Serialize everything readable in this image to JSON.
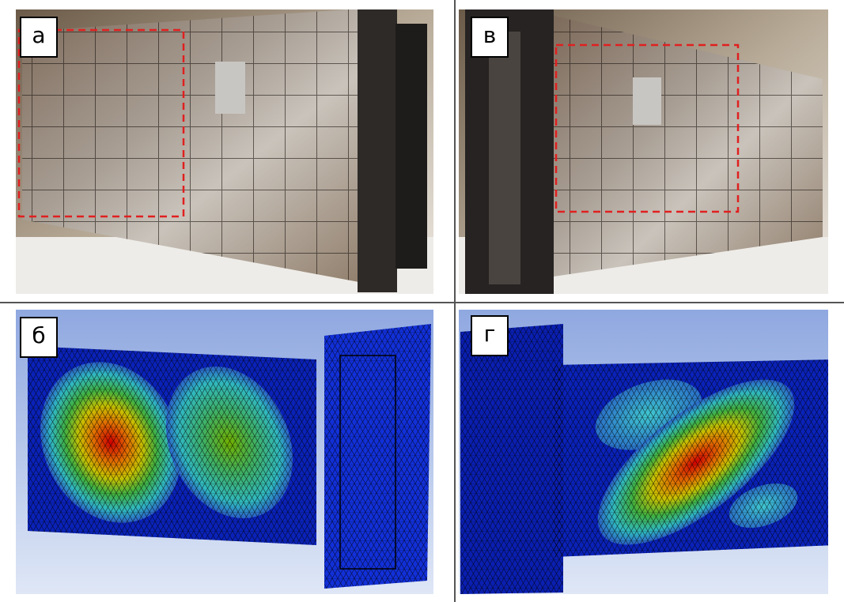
{
  "panels": [
    {
      "label": "а"
    },
    {
      "label": "в"
    },
    {
      "label": "б"
    },
    {
      "label": "г"
    }
  ]
}
